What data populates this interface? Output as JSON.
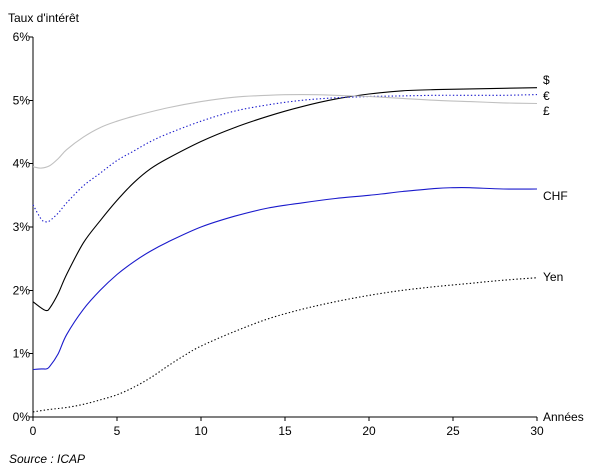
{
  "chart_data": {
    "type": "line",
    "ylabel": "Taux d'intérêt",
    "xlabel": "Années",
    "source": "Source : ICAP",
    "xlim": [
      0,
      30
    ],
    "ylim": [
      0,
      6
    ],
    "x_ticks": [
      0,
      5,
      10,
      15,
      20,
      25,
      30
    ],
    "x_tick_labels": [
      "0",
      "5",
      "10",
      "15",
      "20",
      "25",
      "30"
    ],
    "y_ticks": [
      0,
      1,
      2,
      3,
      4,
      5,
      6
    ],
    "y_tick_labels": [
      "0%",
      "1%",
      "2%",
      "3%",
      "4%",
      "5%",
      "6%"
    ],
    "grid": false,
    "series": [
      {
        "name": "$",
        "color": "#000000",
        "dash": "solid",
        "x": [
          0,
          0.5,
          0.8,
          1,
          1.5,
          2,
          3,
          4,
          5,
          6,
          7,
          8,
          10,
          12,
          14,
          16,
          18,
          20,
          22,
          24,
          26,
          28,
          30
        ],
        "y": [
          1.82,
          1.72,
          1.68,
          1.72,
          1.95,
          2.25,
          2.75,
          3.1,
          3.42,
          3.7,
          3.92,
          4.08,
          4.35,
          4.57,
          4.75,
          4.9,
          5.02,
          5.1,
          5.15,
          5.17,
          5.18,
          5.19,
          5.2
        ]
      },
      {
        "name": "€",
        "color": "#1a1acc",
        "dash": "dotted",
        "x": [
          0,
          0.5,
          0.8,
          1,
          1.5,
          2,
          3,
          4,
          5,
          6,
          7,
          8,
          10,
          12,
          14,
          16,
          18,
          20,
          22,
          24,
          26,
          28,
          30
        ],
        "y": [
          3.35,
          3.12,
          3.08,
          3.1,
          3.22,
          3.38,
          3.65,
          3.85,
          4.05,
          4.2,
          4.35,
          4.47,
          4.67,
          4.83,
          4.93,
          5.0,
          5.04,
          5.06,
          5.07,
          5.08,
          5.08,
          5.08,
          5.09
        ]
      },
      {
        "name": "£",
        "color": "#c0c0c0",
        "dash": "solid",
        "x": [
          0,
          0.5,
          1,
          1.5,
          2,
          3,
          4,
          5,
          6,
          8,
          10,
          12,
          14,
          16,
          18,
          20,
          22,
          24,
          26,
          28,
          30
        ],
        "y": [
          3.95,
          3.93,
          3.97,
          4.08,
          4.22,
          4.42,
          4.57,
          4.67,
          4.75,
          4.88,
          4.98,
          5.05,
          5.08,
          5.09,
          5.08,
          5.06,
          5.03,
          5.0,
          4.98,
          4.96,
          4.95
        ]
      },
      {
        "name": "CHF",
        "color": "#1a1acc",
        "dash": "solid",
        "x": [
          0,
          0.5,
          0.8,
          1,
          1.5,
          2,
          3,
          4,
          5,
          6,
          7,
          8,
          10,
          12,
          14,
          16,
          18,
          20,
          22,
          24,
          25,
          26,
          28,
          30
        ],
        "y": [
          0.75,
          0.76,
          0.76,
          0.8,
          1.0,
          1.3,
          1.7,
          2.0,
          2.25,
          2.45,
          2.62,
          2.76,
          3.0,
          3.17,
          3.3,
          3.38,
          3.45,
          3.5,
          3.56,
          3.61,
          3.62,
          3.62,
          3.6,
          3.6
        ]
      },
      {
        "name": "Yen",
        "color": "#000000",
        "dash": "dotted",
        "x": [
          0,
          1,
          2,
          3,
          4,
          5,
          6,
          7,
          8,
          9,
          10,
          12,
          14,
          16,
          18,
          20,
          22,
          24,
          26,
          28,
          30
        ],
        "y": [
          0.08,
          0.12,
          0.15,
          0.2,
          0.27,
          0.35,
          0.47,
          0.62,
          0.8,
          0.97,
          1.12,
          1.35,
          1.55,
          1.7,
          1.82,
          1.92,
          2.0,
          2.06,
          2.11,
          2.16,
          2.2
        ]
      }
    ]
  }
}
